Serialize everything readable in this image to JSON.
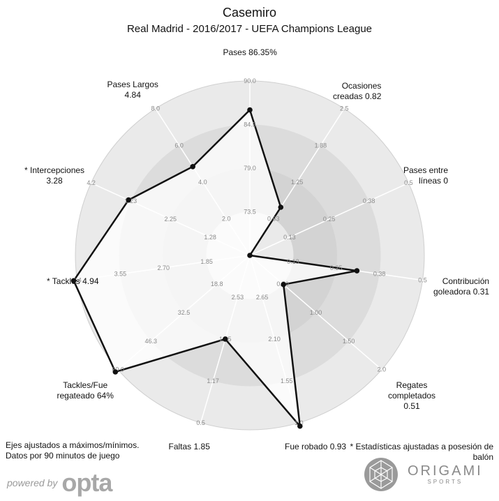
{
  "header": {
    "title": "Casemiro",
    "subtitle": "Real Madrid - 2016/2017 - UEFA Champions League"
  },
  "chart_data": {
    "type": "radar",
    "axes": [
      {
        "name": "Pases 86.35%",
        "ticks": [
          "73.5",
          "79.0",
          "84.5",
          "90.0"
        ],
        "min": 68.0,
        "max": 90.0,
        "value": 86.35
      },
      {
        "name": "Ocasiones creadas 0.82",
        "ticks": [
          "0.63",
          "1.25",
          "1.88",
          "2.5"
        ],
        "min": 0.0,
        "max": 2.5,
        "value": 0.82
      },
      {
        "name": "Pases entre líneas 0",
        "ticks": [
          "0.13",
          "0.25",
          "0.38",
          "0.5"
        ],
        "min": 0.0,
        "max": 0.5,
        "value": 0
      },
      {
        "name": "Contribución goleadora 0.31",
        "ticks": [
          "0.13",
          "0.25",
          "0.38",
          "0.5"
        ],
        "min": 0.0,
        "max": 0.5,
        "value": 0.31
      },
      {
        "name": "Regates completados 0.51",
        "ticks": [
          "0.50",
          "1.00",
          "1.50",
          "2.0"
        ],
        "min": 0.0,
        "max": 2.0,
        "value": 0.51
      },
      {
        "name": "Fue robado 0.93",
        "ticks": [
          "2.65",
          "2.10",
          "1.55",
          "1.0"
        ],
        "min": 3.2,
        "max": 1.0,
        "value": 0.93
      },
      {
        "name": "Faltas 1.85",
        "ticks": [
          "2.53",
          "1.85",
          "1.17",
          "0.5"
        ],
        "min": 3.2,
        "max": 0.5,
        "value": 1.85
      },
      {
        "name": "Tackles/Fue regateado 64%",
        "ticks": [
          "18.8",
          "32.5",
          "46.3",
          "60.0"
        ],
        "min": 5.0,
        "max": 60.0,
        "value": 64
      },
      {
        "name": "* Tackles 4.94",
        "ticks": [
          "1.85",
          "2.70",
          "3.55",
          "4.4"
        ],
        "min": 1.0,
        "max": 4.4,
        "value": 4.94
      },
      {
        "name": "* Intercepciones 3.28",
        "ticks": [
          "1.28",
          "2.25",
          "3.23",
          "4.2"
        ],
        "min": 0.3,
        "max": 4.2,
        "value": 3.28
      },
      {
        "name": "Pases Largos 4.84",
        "ticks": [
          "2.0",
          "4.0",
          "6.0",
          "8.0"
        ],
        "min": 0.0,
        "max": 8.0,
        "value": 4.84
      }
    ],
    "rings": 4
  },
  "labels": [
    {
      "lines": [
        "Pases 86.35%"
      ],
      "align": "center"
    },
    {
      "lines": [
        "Ocasiones",
        "creadas 0.82"
      ],
      "align": "right"
    },
    {
      "lines": [
        "Pases entre",
        "líneas 0"
      ],
      "align": "right"
    },
    {
      "lines": [
        "Contribución",
        "goleadora 0.31"
      ],
      "align": "right"
    },
    {
      "lines": [
        "Regates",
        "completados",
        "0.51"
      ],
      "align": "center"
    },
    {
      "lines": [
        "Fue robado 0.93"
      ],
      "align": "center"
    },
    {
      "lines": [
        "Faltas 1.85"
      ],
      "align": "center"
    },
    {
      "lines": [
        "Tackles/Fue",
        "regateado 64%"
      ],
      "align": "center"
    },
    {
      "lines": [
        "* Tackles 4.94"
      ],
      "align": "left"
    },
    {
      "lines": [
        "* Intercepciones",
        "3.28"
      ],
      "align": "center"
    },
    {
      "lines": [
        "Pases Largos",
        "4.84"
      ],
      "align": "center"
    }
  ],
  "notes": {
    "left_line1": "Ejes ajustados a máximos/mínimos.",
    "left_line2": "Datos por 90 minutos de juego",
    "right_line1": "* Estadísticas ajustadas a posesión de",
    "right_line2": "balón"
  },
  "branding": {
    "powered_by": "powered by",
    "opta": "opta",
    "origami": "ORIGAMI",
    "origami_sub": "SPORTS"
  },
  "colors": {
    "ring_outer": "#eaeaea",
    "ring_mid": "#dcdcdc",
    "ring_inner": "#d3d3d3",
    "polygon_fill": "#ffffff",
    "polygon_stroke": "#111111"
  }
}
